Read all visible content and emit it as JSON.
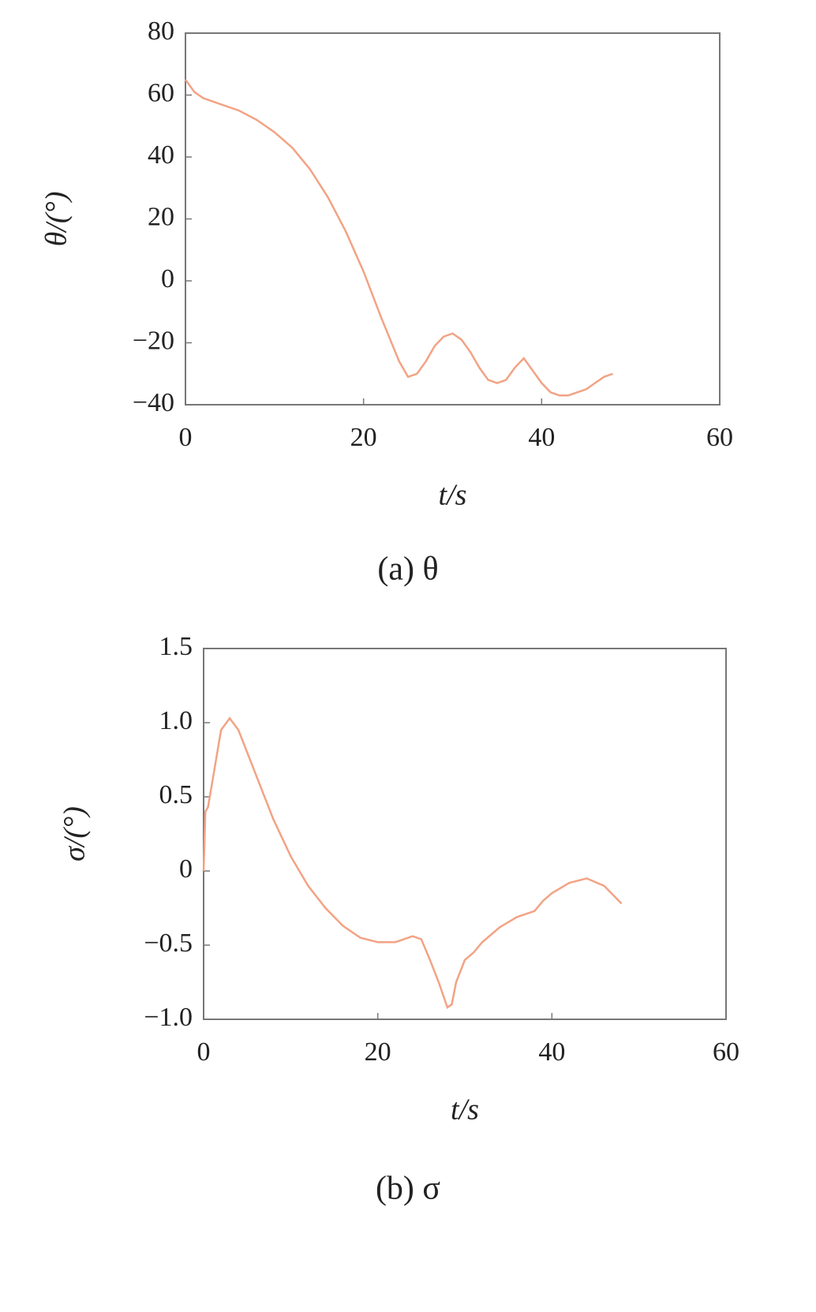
{
  "chart_data": [
    {
      "type": "line",
      "caption": "(a) θ",
      "x_label": "t/s",
      "y_label": "θ/(°)",
      "xlim": [
        0,
        60
      ],
      "xticks": [
        0,
        20,
        40,
        60
      ],
      "ylim": [
        -40,
        80
      ],
      "yticks": [
        {
          "value": -40,
          "label": "−40"
        },
        {
          "value": -20,
          "label": "−20"
        },
        0,
        20,
        40,
        60,
        80
      ],
      "grid": false,
      "series": [
        {
          "color": "#f2a384",
          "x": [
            0,
            1,
            2,
            4,
            6,
            8,
            10,
            12,
            14,
            16,
            18,
            20,
            22,
            24,
            25,
            26,
            27,
            28,
            29,
            30,
            31,
            32,
            33,
            34,
            35,
            36,
            37,
            38,
            39,
            40,
            41,
            42,
            43,
            44,
            45,
            46,
            47,
            48
          ],
          "values": [
            65,
            61,
            59,
            57,
            55,
            52,
            48,
            43,
            36,
            27,
            16,
            3,
            -12,
            -26,
            -31,
            -30,
            -26,
            -21,
            -18,
            -17,
            -19,
            -23,
            -28,
            -32,
            -33,
            -32,
            -28,
            -25,
            -29,
            -33,
            -36,
            -37,
            -37,
            -36,
            -35,
            -33,
            -31,
            -30
          ]
        }
      ]
    },
    {
      "type": "line",
      "caption": "(b) σ",
      "x_label": "t/s",
      "y_label": "σ/(°)",
      "xlim": [
        0,
        60
      ],
      "xticks": [
        0,
        20,
        40,
        60
      ],
      "ylim": [
        -1.0,
        1.5
      ],
      "yticks": [
        {
          "value": -1.0,
          "label": "−1.0"
        },
        {
          "value": -0.5,
          "label": "−0.5"
        },
        0,
        0.5,
        {
          "value": 1.0,
          "label": "1.0"
        },
        1.5
      ],
      "grid": false,
      "series": [
        {
          "color": "#f2a384",
          "x": [
            0,
            0.2,
            0.5,
            1,
            2,
            3,
            4,
            5,
            6,
            8,
            10,
            12,
            14,
            16,
            18,
            20,
            22,
            24,
            25,
            26,
            27,
            28,
            28.5,
            29,
            30,
            31,
            32,
            34,
            36,
            38,
            39,
            40,
            42,
            44,
            46,
            48
          ],
          "values": [
            0,
            0.4,
            0.43,
            0.6,
            0.95,
            1.03,
            0.95,
            0.8,
            0.65,
            0.35,
            0.1,
            -0.1,
            -0.25,
            -0.37,
            -0.45,
            -0.48,
            -0.48,
            -0.44,
            -0.46,
            -0.6,
            -0.75,
            -0.92,
            -0.9,
            -0.75,
            -0.6,
            -0.55,
            -0.48,
            -0.38,
            -0.31,
            -0.27,
            -0.2,
            -0.15,
            -0.08,
            -0.05,
            -0.1,
            -0.22
          ]
        }
      ]
    }
  ]
}
